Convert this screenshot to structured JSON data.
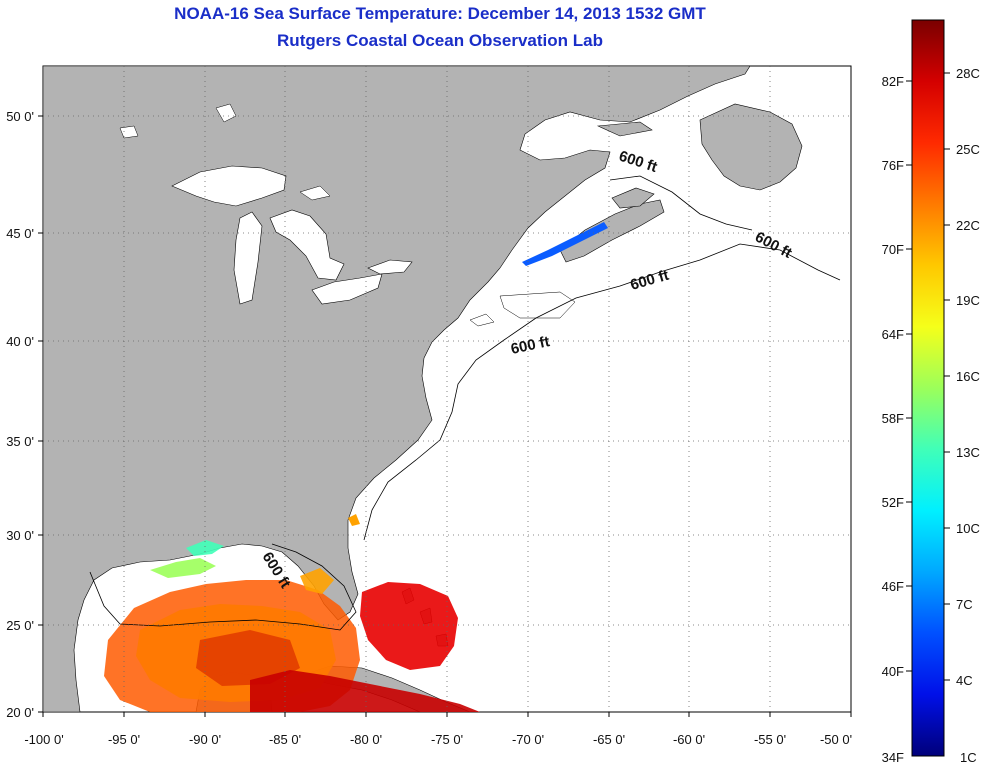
{
  "header": {
    "title": "NOAA-16 Sea Surface Temperature:  December 14, 2013 1532 GMT",
    "subtitle": "Rutgers Coastal Ocean Observation Lab"
  },
  "map": {
    "lat_ticks": [
      "50 0'",
      "45 0'",
      "40 0'",
      "35 0'",
      "30 0'",
      "25 0'",
      "20 0'"
    ],
    "lon_ticks": [
      "-100 0'",
      "-95 0'",
      "-90 0'",
      "-85 0'",
      "-80 0'",
      "-75 0'",
      "-70 0'",
      "-65 0'",
      "-60 0'",
      "-55 0'",
      "-50 0'"
    ],
    "contour_labels": [
      "600 ft",
      "600 ft",
      "600 ft",
      "600 ft",
      "600 ft"
    ],
    "colors": {
      "land": "#b3b3b3",
      "ocean": "#ffffff",
      "grid": "#666666"
    }
  },
  "colorbar": {
    "fahrenheit_labels": [
      "82F",
      "76F",
      "70F",
      "64F",
      "58F",
      "52F",
      "46F",
      "40F",
      "34F"
    ],
    "celsius_labels": [
      "28C",
      "25C",
      "22C",
      "19C",
      "16C",
      "13C",
      "10C",
      "7C",
      "4C",
      "1C"
    ],
    "gradient": [
      "#7a0000",
      "#d40000",
      "#ff2a00",
      "#ff7a00",
      "#ffc800",
      "#f5ff1a",
      "#9cff5a",
      "#40ffb8",
      "#00f0ff",
      "#00a8ff",
      "#0050ff",
      "#0010e8",
      "#00007a"
    ]
  }
}
